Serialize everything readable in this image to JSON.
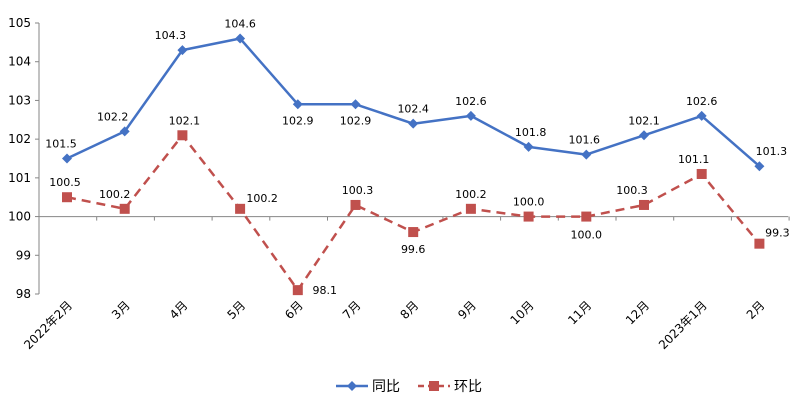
{
  "chart_data": {
    "type": "line",
    "categories": [
      "2022年2月",
      "3月",
      "4月",
      "5月",
      "6月",
      "7月",
      "8月",
      "9月",
      "10月",
      "11月",
      "12月",
      "2023年1月",
      "2月"
    ],
    "ylim": [
      98,
      105
    ],
    "yticks": [
      "98",
      "99",
      "100",
      "101",
      "102",
      "103",
      "104",
      "105"
    ],
    "baseline": 100,
    "grid": false,
    "legend_position": "bottom",
    "series": [
      {
        "name": "同比",
        "color": "#4472C4",
        "line_style": "solid",
        "marker": "diamond",
        "values": [
          101.5,
          102.2,
          104.3,
          104.6,
          102.9,
          102.9,
          102.4,
          102.6,
          101.8,
          101.6,
          102.1,
          102.6,
          101.3
        ],
        "labels": [
          "101.5",
          "102.2",
          "104.3",
          "104.6",
          "102.9",
          "102.9",
          "102.4",
          "102.6",
          "101.8",
          "101.6",
          "102.1",
          "102.6",
          "101.3"
        ]
      },
      {
        "name": "环比",
        "color": "#C0504D",
        "line_style": "dashed",
        "marker": "square",
        "values": [
          100.5,
          100.2,
          102.1,
          100.2,
          98.1,
          100.3,
          99.6,
          100.2,
          100.0,
          100.0,
          100.3,
          101.1,
          99.3
        ],
        "labels": [
          "100.5",
          "100.2",
          "102.1",
          "100.2",
          "98.1",
          "100.3",
          "99.6",
          "100.2",
          "100.0",
          "100.0",
          "100.3",
          "101.1",
          "99.3"
        ]
      }
    ]
  }
}
